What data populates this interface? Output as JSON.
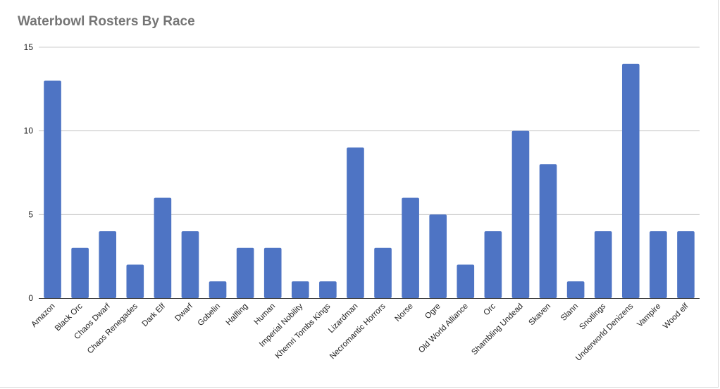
{
  "chart_data": {
    "type": "bar",
    "title": "Waterbowl Rosters By Race",
    "xlabel": "",
    "ylabel": "",
    "ylim": [
      0,
      15
    ],
    "yticks": [
      0,
      5,
      10,
      15
    ],
    "grid": true,
    "legend": "none",
    "bar_color": "#4e74c4",
    "categories": [
      "Amazon",
      "Black Orc",
      "Chaos Dwarf",
      "Chaos Renegades",
      "Dark Elf",
      "Dwarf",
      "Gobelin",
      "Halfling",
      "Human",
      "Imperial Nobility",
      "Khemri Tombs Kings",
      "Lizardman",
      "Necromantic Horrors",
      "Norse",
      "Ogre",
      "Old World Alliance",
      "Orc",
      "Shambling Undead",
      "Skaven",
      "Slann",
      "Snotlings",
      "Underworld Denizens",
      "Vampire",
      "Wood elf"
    ],
    "values": [
      13,
      3,
      4,
      2,
      6,
      4,
      1,
      3,
      3,
      1,
      1,
      9,
      3,
      6,
      5,
      2,
      4,
      10,
      8,
      1,
      4,
      14,
      4,
      4
    ]
  }
}
